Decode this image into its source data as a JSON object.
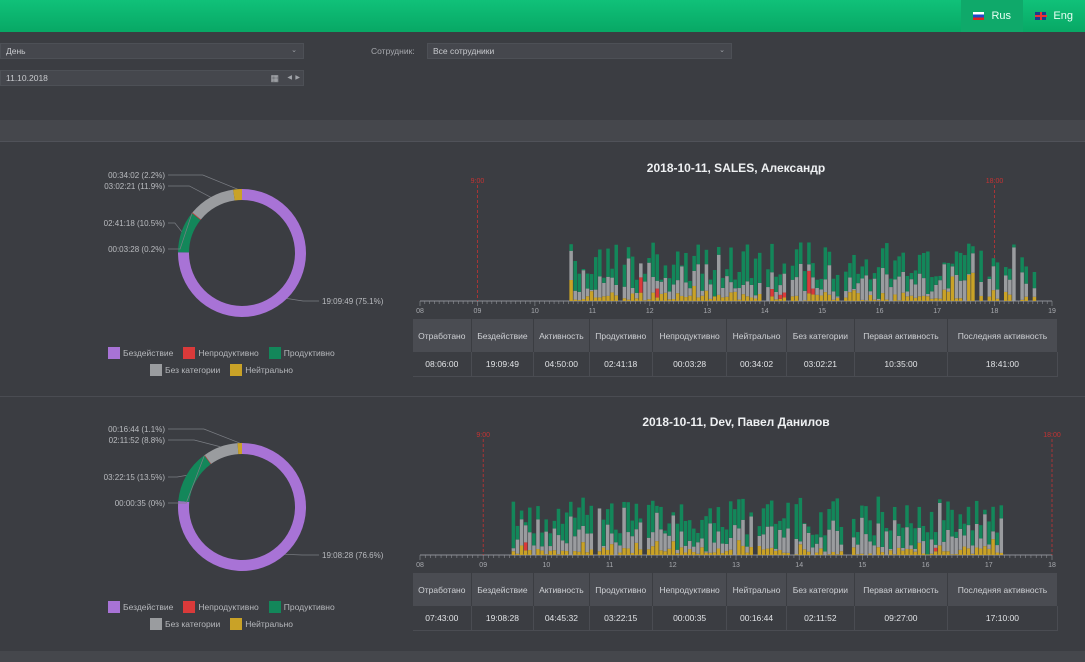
{
  "header": {
    "lang_rus": "Rus",
    "lang_eng": "Eng"
  },
  "filters": {
    "period_value": "День",
    "employee_label": "Сотрудник:",
    "employee_value": "Все сотрудники",
    "date_value": "11.10.2018",
    "calendar_icon": "calendar-icon",
    "prev_icon": "◀",
    "next_icon": "▶"
  },
  "legend": {
    "idle": "Бездействие",
    "unproductive": "Непродуктивно",
    "productive": "Продуктивно",
    "uncategorized": "Без категории",
    "neutral": "Нейтрально"
  },
  "colors": {
    "idle": "#a873d6",
    "unproductive": "#d93a3a",
    "productive": "#13875a",
    "uncategorized": "#9a9c9f",
    "neutral": "#c9a227",
    "marker": "#c33333"
  },
  "table_headers": [
    "Отработано",
    "Бездействие",
    "Активность",
    "Продуктивно",
    "Непродуктивно",
    "Нейтрально",
    "Без категории",
    "Первая активность",
    "Последняя активность"
  ],
  "panels": [
    {
      "title": "2018-10-11, SALES, Александр",
      "donut": {
        "slices": [
          {
            "key": "idle",
            "value": 75.1,
            "label": "19:09:49 (75.1%)"
          },
          {
            "key": "productive",
            "value": 10.5,
            "label": "02:41:18 (10.5%)"
          },
          {
            "key": "unproductive",
            "value": 0.2,
            "label": "00:03:28 (0.2%)"
          },
          {
            "key": "uncategorized",
            "value": 11.9,
            "label": "03:02:21 (11.9%)"
          },
          {
            "key": "neutral",
            "value": 2.2,
            "label": "00:34:02 (2.2%)"
          }
        ]
      },
      "timeline": {
        "hours": [
          "08",
          "09",
          "10",
          "11",
          "12",
          "13",
          "14",
          "15",
          "16",
          "17",
          "18",
          "19"
        ],
        "start_hour": 8,
        "end_hour": 19,
        "markers": [
          {
            "hour": 9.0,
            "label": "9:00"
          },
          {
            "hour": 18.0,
            "label": "18:00"
          }
        ],
        "activity_start": 10.6,
        "activity_end": 18.7
      },
      "stats": [
        "08:06:00",
        "19:09:49",
        "04:50:00",
        "02:41:18",
        "00:03:28",
        "00:34:02",
        "03:02:21",
        "10:35:00",
        "18:41:00"
      ]
    },
    {
      "title": "2018-10-11, Dev, Павел Данилов",
      "donut": {
        "slices": [
          {
            "key": "idle",
            "value": 76.6,
            "label": "19:08:28 (76.6%)"
          },
          {
            "key": "productive",
            "value": 13.5,
            "label": "03:22:15 (13.5%)"
          },
          {
            "key": "unproductive",
            "value": 0.0,
            "label": "00:00:35 (0%)"
          },
          {
            "key": "uncategorized",
            "value": 8.8,
            "label": "02:11:52 (8.8%)"
          },
          {
            "key": "neutral",
            "value": 1.1,
            "label": "00:16:44 (1.1%)"
          }
        ]
      },
      "timeline": {
        "hours": [
          "08",
          "09",
          "10",
          "11",
          "12",
          "13",
          "14",
          "15",
          "16",
          "17",
          "18"
        ],
        "start_hour": 8,
        "end_hour": 18,
        "markers": [
          {
            "hour": 9.0,
            "label": "9:00"
          },
          {
            "hour": 18.0,
            "label": "18:00"
          }
        ],
        "activity_start": 9.45,
        "activity_end": 17.2
      },
      "stats": [
        "07:43:00",
        "19:08:28",
        "04:45:32",
        "03:22:15",
        "00:00:35",
        "00:16:44",
        "02:11:52",
        "09:27:00",
        "17:10:00"
      ]
    }
  ]
}
